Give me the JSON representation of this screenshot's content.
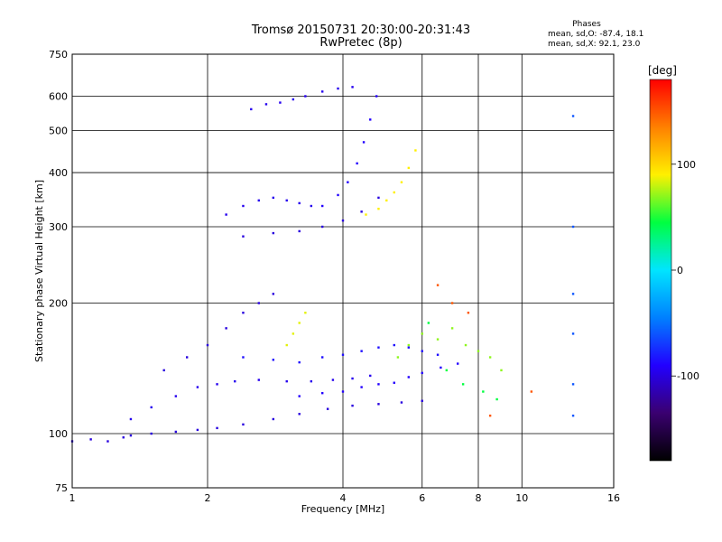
{
  "chart_data": {
    "type": "scatter",
    "title": "Tromsø 20150731 20:30:00-20:31:43",
    "subtitle": "RwPretec (8p)",
    "xlabel": "Frequency [MHz]",
    "ylabel": "Stationary phase Virtual Height [km]",
    "xscale": "log",
    "yscale": "log",
    "xlim": [
      1,
      16
    ],
    "ylim": [
      75,
      750
    ],
    "xticks": [
      1,
      2,
      4,
      6,
      8,
      10,
      16
    ],
    "yticks": [
      75,
      100,
      200,
      300,
      400,
      500,
      600,
      750
    ],
    "grid": true,
    "colorbar": {
      "label": "[deg]",
      "range": [
        -180,
        180
      ],
      "ticks": [
        100,
        0,
        -100
      ],
      "stops": [
        "#000000",
        "#3a0070",
        "#2200ff",
        "#0080ff",
        "#00e5ff",
        "#00ff40",
        "#fff000",
        "#ff8000",
        "#ff0000"
      ]
    },
    "stats": {
      "header": "Phases",
      "o_mode": "mean, sd,O: -87.4, 18.1",
      "x_mode": "mean, sd,X:  92.1, 23.0"
    },
    "traces": [
      {
        "name": "",
        "phase": -100,
        "x": [
          1.0,
          1.1,
          1.2,
          1.3,
          1.35,
          1.5,
          1.7,
          1.9,
          2.1,
          2.4,
          2.8,
          3.2,
          3.7,
          4.2,
          4.8,
          5.4,
          6.0
        ],
        "y": [
          96,
          97,
          96,
          98,
          99,
          100,
          101,
          102,
          103,
          105,
          108,
          111,
          114,
          116,
          117,
          118,
          119
        ]
      },
      {
        "name": "",
        "phase": -95,
        "x": [
          1.35,
          1.5,
          1.7,
          1.9,
          2.1,
          2.3,
          2.6,
          3.0,
          3.4,
          3.8,
          4.2,
          4.6
        ],
        "y": [
          108,
          115,
          122,
          128,
          130,
          132,
          133,
          132,
          132,
          133,
          134,
          136
        ]
      },
      {
        "name": "",
        "phase": -90,
        "x": [
          3.2,
          3.6,
          4.0,
          4.4,
          4.8,
          5.2,
          5.6,
          6.0,
          6.6,
          7.2
        ],
        "y": [
          122,
          124,
          125,
          128,
          130,
          131,
          135,
          138,
          142,
          145
        ]
      },
      {
        "name": "",
        "phase": -100,
        "x": [
          1.6,
          1.8,
          2.0,
          2.2,
          2.4,
          2.6,
          2.8
        ],
        "y": [
          140,
          150,
          160,
          175,
          190,
          200,
          210
        ]
      },
      {
        "name": "",
        "phase": -85,
        "x": [
          2.4,
          2.8,
          3.2,
          3.6,
          4.0,
          4.4,
          4.8,
          5.2,
          5.6,
          6.0,
          6.5
        ],
        "y": [
          150,
          148,
          146,
          150,
          152,
          155,
          158,
          160,
          158,
          155,
          152
        ]
      },
      {
        "name": "",
        "phase": -100,
        "x": [
          2.4,
          2.8,
          3.2,
          3.6,
          4.0,
          4.4,
          4.8
        ],
        "y": [
          285,
          290,
          293,
          300,
          310,
          325,
          350
        ]
      },
      {
        "name": "",
        "phase": -95,
        "x": [
          2.2,
          2.4,
          2.6,
          2.8,
          3.0,
          3.2,
          3.4
        ],
        "y": [
          320,
          335,
          345,
          350,
          345,
          340,
          335
        ]
      },
      {
        "name": "",
        "phase": -90,
        "x": [
          3.6,
          3.9,
          4.1,
          4.3,
          4.45,
          4.6,
          4.75
        ],
        "y": [
          335,
          355,
          380,
          420,
          470,
          530,
          600
        ]
      },
      {
        "name": "",
        "phase": -95,
        "x": [
          2.5,
          2.7,
          2.9,
          3.1,
          3.3,
          3.6,
          3.9,
          4.2
        ],
        "y": [
          560,
          575,
          580,
          590,
          600,
          615,
          625,
          630
        ]
      },
      {
        "name": "",
        "phase": 85,
        "x": [
          3.0,
          3.1,
          3.2,
          3.3
        ],
        "y": [
          160,
          170,
          180,
          190
        ]
      },
      {
        "name": "",
        "phase": 90,
        "x": [
          4.5,
          4.8,
          5.0,
          5.2,
          5.4,
          5.6,
          5.8
        ],
        "y": [
          320,
          330,
          345,
          360,
          380,
          410,
          450
        ]
      },
      {
        "name": "",
        "phase": 70,
        "x": [
          5.3,
          5.6,
          6.0,
          6.5,
          7.0,
          7.5,
          8.0,
          8.5,
          9.0
        ],
        "y": [
          150,
          160,
          170,
          165,
          175,
          160,
          155,
          150,
          140
        ]
      },
      {
        "name": "",
        "phase": 45,
        "x": [
          6.2,
          6.8,
          7.4,
          8.2,
          8.8
        ],
        "y": [
          180,
          140,
          130,
          125,
          120
        ]
      },
      {
        "name": "",
        "phase": 150,
        "x": [
          6.5,
          7.0,
          7.6,
          8.5,
          10.5
        ],
        "y": [
          220,
          200,
          190,
          110,
          125
        ]
      },
      {
        "name": "",
        "phase": -60,
        "x": [
          13.0,
          13.0,
          13.0,
          13.0,
          13.0,
          13.0
        ],
        "y": [
          110,
          130,
          170,
          210,
          300,
          540
        ]
      }
    ]
  }
}
